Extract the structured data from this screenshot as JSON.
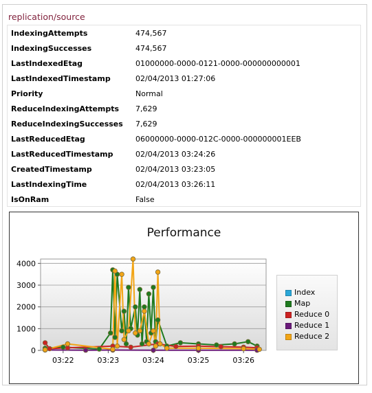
{
  "panel": {
    "title": "replication/source",
    "rows": [
      {
        "key": "IndexingAttempts",
        "value": "474,567"
      },
      {
        "key": "IndexingSuccesses",
        "value": "474,567"
      },
      {
        "key": "LastIndexedEtag",
        "value": "01000000-0000-0121-0000-000000000001"
      },
      {
        "key": "LastIndexedTimestamp",
        "value": "02/04/2013 01:27:06"
      },
      {
        "key": "Priority",
        "value": "Normal"
      },
      {
        "key": "ReduceIndexingAttempts",
        "value": "7,629"
      },
      {
        "key": "ReduceIndexingSuccesses",
        "value": "7,629"
      },
      {
        "key": "LastReducedEtag",
        "value": "06000000-0000-012C-0000-000000001EEB"
      },
      {
        "key": "LastReducedTimestamp",
        "value": "02/04/2013 03:24:26"
      },
      {
        "key": "CreatedTimestamp",
        "value": "02/04/2013 03:23:05"
      },
      {
        "key": "LastIndexingTime",
        "value": "02/04/2013 03:26:11"
      },
      {
        "key": "IsOnRam",
        "value": "False"
      }
    ]
  },
  "chart_data": {
    "type": "line",
    "title": "Performance",
    "y_ticks": [
      "0",
      "1000",
      "2000",
      "3000",
      "4000"
    ],
    "ylim": [
      0,
      4200
    ],
    "x_ticks": [
      "03:22",
      "03:23",
      "03:24",
      "03:25",
      "03:26"
    ],
    "xlim": [
      "03:21.5",
      "03:26.5"
    ],
    "grid": "horizontal",
    "legend_position": "right",
    "series": [
      {
        "name": "Index",
        "color": "#2aa7d8",
        "x": [],
        "y": []
      },
      {
        "name": "Map",
        "color": "#1f7a1f",
        "x": [
          "03:21.6",
          "03:22.0",
          "03:22.8",
          "03:23.05",
          "03:23.1",
          "03:23.15",
          "03:23.2",
          "03:23.3",
          "03:23.35",
          "03:23.4",
          "03:23.45",
          "03:23.5",
          "03:23.6",
          "03:23.65",
          "03:23.7",
          "03:23.75",
          "03:23.8",
          "03:23.85",
          "03:23.9",
          "03:23.95",
          "03:24.0",
          "03:24.05",
          "03:24.1",
          "03:24.3",
          "03:24.6",
          "03:25.0",
          "03:25.4",
          "03:25.8",
          "03:26.1",
          "03:26.3"
        ],
        "y": [
          100,
          150,
          60,
          800,
          3700,
          600,
          3500,
          900,
          1800,
          300,
          2900,
          1000,
          2000,
          700,
          2800,
          300,
          2000,
          400,
          2600,
          800,
          2900,
          400,
          1400,
          200,
          350,
          300,
          250,
          300,
          400,
          200
        ]
      },
      {
        "name": "Reduce 0",
        "color": "#cc2222",
        "x": [
          "03:21.6",
          "03:21.7",
          "03:22.1",
          "03:23.1",
          "03:23.5",
          "03:24.1",
          "03:24.5",
          "03:25.0",
          "03:25.5",
          "03:26.0",
          "03:26.3"
        ],
        "y": [
          350,
          80,
          120,
          200,
          150,
          300,
          180,
          200,
          170,
          150,
          120
        ]
      },
      {
        "name": "Reduce 1",
        "color": "#6a1a7a",
        "x": [
          "03:21.6",
          "03:22.5",
          "03:23.1",
          "03:24.0",
          "03:25.0",
          "03:26.3"
        ],
        "y": [
          20,
          10,
          15,
          10,
          10,
          10
        ]
      },
      {
        "name": "Reduce 2",
        "color": "#f2a516",
        "x": [
          "03:21.6",
          "03:22.1",
          "03:23.1",
          "03:23.15",
          "03:23.2",
          "03:23.3",
          "03:23.35",
          "03:23.45",
          "03:23.55",
          "03:23.6",
          "03:23.7",
          "03:23.8",
          "03:23.9",
          "03:24.0",
          "03:24.05",
          "03:24.1",
          "03:24.15",
          "03:24.3",
          "03:25.0",
          "03:26.0",
          "03:26.35"
        ],
        "y": [
          30,
          300,
          50,
          3650,
          200,
          3500,
          500,
          900,
          4200,
          800,
          900,
          1800,
          300,
          900,
          200,
          3600,
          300,
          100,
          100,
          80,
          50
        ]
      }
    ]
  }
}
